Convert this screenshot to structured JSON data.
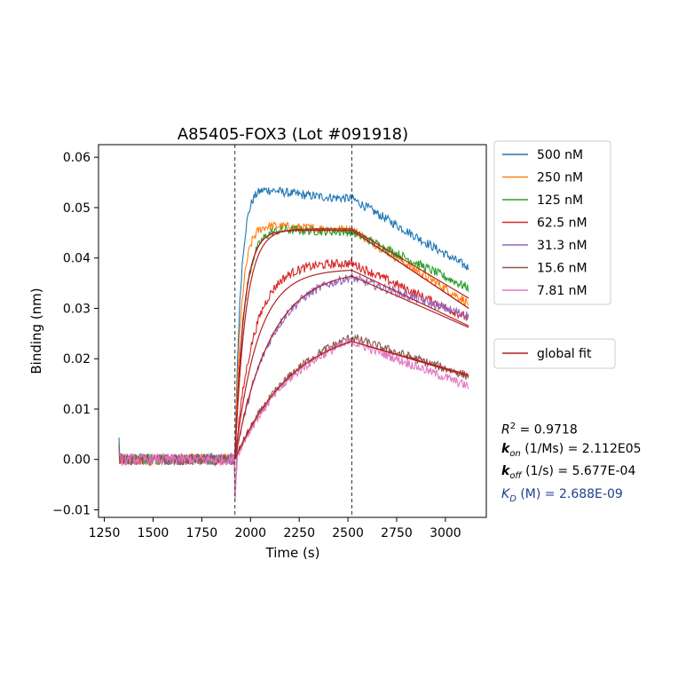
{
  "chart_data": {
    "type": "line",
    "title": "A85405-FOX3 (Lot #091918)",
    "xlabel": "Time (s)",
    "ylabel": "Binding (nm)",
    "xlim": [
      1220,
      3210
    ],
    "ylim": [
      -0.0115,
      0.0625
    ],
    "xticks": [
      1250,
      1500,
      1750,
      2000,
      2250,
      2500,
      2750,
      3000
    ],
    "yticks": [
      -0.01,
      0.0,
      0.01,
      0.02,
      0.03,
      0.04,
      0.05,
      0.06
    ],
    "ytick_labels": [
      "−0.01",
      "0.00",
      "0.01",
      "0.02",
      "0.03",
      "0.04",
      "0.05",
      "0.06"
    ],
    "grid": false,
    "association_start": 1920,
    "dissociation_start": 2520,
    "baseline_start": 1325,
    "end_time": 3120,
    "legend_position": "outside-right",
    "series": [
      {
        "name": "500 nM",
        "color": "#1f77b4",
        "plateau": 0.0515,
        "peak": 0.0565,
        "kobs": 0.03,
        "end": 0.038
      },
      {
        "name": "250 nM",
        "color": "#ff7f0e",
        "plateau": 0.0455,
        "peak": 0.048,
        "kobs": 0.028,
        "end": 0.031
      },
      {
        "name": "125 nM",
        "color": "#2ca02c",
        "plateau": 0.045,
        "peak": 0.0475,
        "kobs": 0.02,
        "end": 0.034
      },
      {
        "name": "62.5 nM",
        "color": "#d62728",
        "plateau": 0.039,
        "peak": 0.0395,
        "kobs": 0.01,
        "end": 0.028
      },
      {
        "name": "31.3 nM",
        "color": "#9467bd",
        "plateau": 0.0375,
        "peak": 0.0375,
        "kobs": 0.0055,
        "end": 0.0285
      },
      {
        "name": "15.6 nM",
        "color": "#8c564b",
        "plateau": 0.029,
        "peak": 0.029,
        "kobs": 0.003,
        "end": 0.0165
      },
      {
        "name": "7.81 nM",
        "color": "#e377c2",
        "plateau": 0.028,
        "peak": 0.028,
        "kobs": 0.003,
        "end": 0.0145
      }
    ],
    "fit": {
      "name": "global fit",
      "color": "#b22222",
      "curves": [
        {
          "plateau": 0.0455,
          "kobs": 0.022,
          "end": 0.03
        },
        {
          "plateau": 0.0455,
          "kobs": 0.022,
          "end": 0.03
        },
        {
          "plateau": 0.0458,
          "kobs": 0.018,
          "end": 0.032
        },
        {
          "plateau": 0.0378,
          "kobs": 0.0085,
          "end": 0.0265
        },
        {
          "plateau": 0.0378,
          "kobs": 0.0055,
          "end": 0.0262
        },
        {
          "plateau": 0.0272,
          "kobs": 0.0033,
          "end": 0.0168
        },
        {
          "plateau": 0.0272,
          "kobs": 0.0033,
          "end": 0.0165
        }
      ]
    },
    "stats": {
      "r2_label": "R",
      "r2_sup": "2",
      "r2_value": " = 0.9718",
      "kon_label": "k",
      "kon_sub": "on",
      "kon_value": " (1/Ms) = 2.112E05",
      "koff_label": "k",
      "koff_sub": "off",
      "koff_value": " (1/s) = 5.677E-04",
      "kd_label": "K",
      "kd_sub": "D",
      "kd_value": " (M) = 2.688E-09"
    }
  }
}
